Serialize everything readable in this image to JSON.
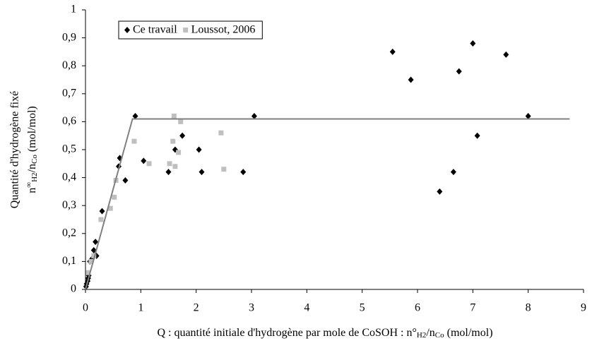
{
  "chart_data": {
    "type": "scatter",
    "x_label": [
      "Q : quantité initiale d'hydrogène par mole de CoSOH : n°",
      "H2",
      "/n",
      "Co",
      " (mol/mol)"
    ],
    "y_label_line1": "Quantité d'hydrogène fixé",
    "y_label_line2": [
      "n",
      "∞",
      "H2",
      "/n",
      "Co",
      " (mol/mol)"
    ],
    "xlim": [
      0,
      9
    ],
    "xticks": [
      0,
      1,
      2,
      3,
      4,
      5,
      6,
      7,
      8,
      9
    ],
    "ylim": [
      0,
      1
    ],
    "yticks": [
      0,
      {
        "value": 0.1,
        "label": "0,1"
      },
      {
        "value": 0.2,
        "label": "0,2"
      },
      {
        "value": 0.3,
        "label": "0,3"
      },
      {
        "value": 0.4,
        "label": "0,4"
      },
      {
        "value": 0.5,
        "label": "0,5"
      },
      {
        "value": 0.6,
        "label": "0,6"
      },
      {
        "value": 0.7,
        "label": "0,7"
      },
      {
        "value": 0.8,
        "label": "0,8"
      },
      {
        "value": 0.9,
        "label": "0,9"
      },
      1
    ],
    "legend": "upper left",
    "series": [
      {
        "name": "Ce travail",
        "color": "#000000",
        "marker": "diamond",
        "x": [
          0.01,
          0.02,
          0.04,
          0.05,
          0.06,
          0.08,
          0.12,
          0.15,
          0.18,
          0.2,
          0.3,
          0.6,
          0.62,
          0.72,
          0.9,
          1.05,
          1.5,
          1.62,
          1.75,
          2.05,
          2.1,
          2.85,
          3.05,
          5.55,
          5.88,
          6.4,
          6.65,
          6.75,
          7.0,
          7.08,
          7.6,
          8.0
        ],
        "values": [
          0.01,
          0.02,
          0.03,
          0.04,
          0.05,
          0.1,
          0.11,
          0.14,
          0.17,
          0.12,
          0.28,
          0.44,
          0.47,
          0.39,
          0.62,
          0.46,
          0.42,
          0.5,
          0.55,
          0.5,
          0.42,
          0.42,
          0.62,
          0.85,
          0.75,
          0.35,
          0.42,
          0.78,
          0.88,
          0.55,
          0.84,
          0.62
        ]
      },
      {
        "name": "Loussot, 2006",
        "color": "#bfbfbf",
        "marker": "square",
        "x": [
          0.05,
          0.1,
          0.15,
          0.28,
          0.45,
          0.52,
          0.55,
          0.88,
          1.15,
          1.52,
          1.58,
          1.6,
          1.62,
          1.68,
          1.72,
          2.45,
          2.5
        ],
        "values": [
          0.06,
          0.1,
          0.12,
          0.25,
          0.29,
          0.33,
          0.39,
          0.53,
          0.45,
          0.45,
          0.53,
          0.62,
          0.44,
          0.49,
          0.6,
          0.56,
          0.43
        ]
      },
      {
        "color": "#808080",
        "marker": "line",
        "x": [
          0,
          0.85,
          8.75
        ],
        "values": [
          0,
          0.61,
          0.61
        ]
      }
    ]
  }
}
